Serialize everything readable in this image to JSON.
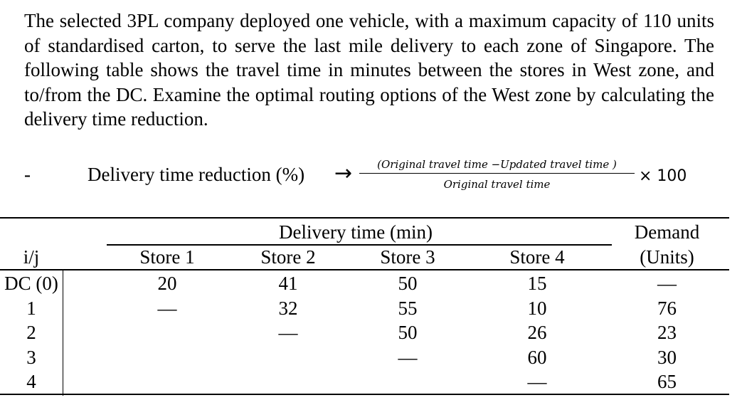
{
  "paragraph": "The selected 3PL company deployed one vehicle, with a maximum capacity of 110 units of standardised carton, to serve the last mile delivery to each zone of Singapore. The following table shows the travel time in minutes between the stores in West zone, and to/from the DC. Examine the optimal routing options of the West zone by calculating the delivery time reduction.",
  "formula": {
    "bullet": "-",
    "label": "Delivery time reduction (%)",
    "arrow": "→",
    "numerator": "(Original travel time −Updated travel time )",
    "denominator": "Original travel time",
    "multiplier": "× 100"
  },
  "table": {
    "group_header": "Delivery time (min)",
    "demand_header_line1": "Demand",
    "demand_header_line2": "(Units)",
    "columns": [
      "i/j",
      "Store 1",
      "Store 2",
      "Store 3",
      "Store 4"
    ],
    "rows": [
      {
        "label": "DC (0)",
        "s1": "20",
        "s2": "41",
        "s3": "50",
        "s4": "15",
        "demand": "—"
      },
      {
        "label": "1",
        "s1": "—",
        "s2": "32",
        "s3": "55",
        "s4": "10",
        "demand": "76"
      },
      {
        "label": "2",
        "s1": "",
        "s2": "—",
        "s3": "50",
        "s4": "26",
        "demand": "23"
      },
      {
        "label": "3",
        "s1": "",
        "s2": "",
        "s3": "—",
        "s4": "60",
        "demand": "30"
      },
      {
        "label": "4",
        "s1": "",
        "s2": "",
        "s3": "",
        "s4": "—",
        "demand": "65"
      }
    ]
  }
}
